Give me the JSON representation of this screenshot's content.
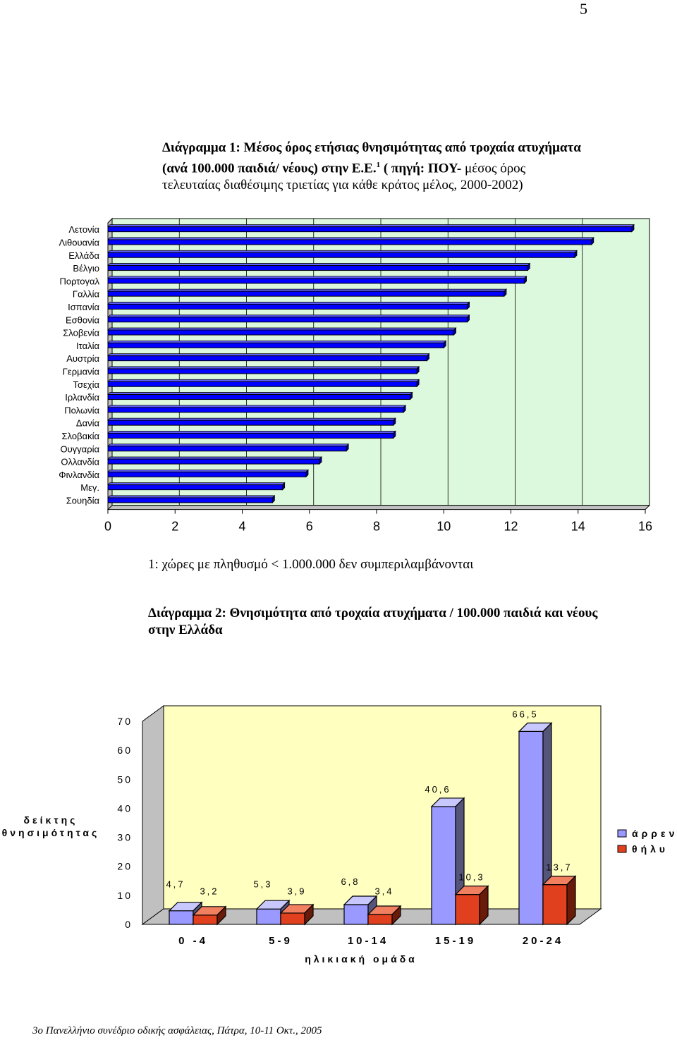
{
  "page_number": "5",
  "chart1_caption": {
    "title": "Διάγραμμα 1: Μέσος όρος ετήσιας θνησιμότητας από τροχαία ατυχήματα (ανά 100.000 παιδιά/ νέους) στην Ε.Ε.",
    "superscript": "1",
    "source": " ( πηγή: ΠΟΥ-",
    "subtitle": "μέσος όρος τελευταίας διαθέσιμης τριετίας για κάθε κράτος μέλος, 2000-2002)"
  },
  "chart1_note": "1: χώρες με πληθυσμό < 1.000.000 δεν συμπεριλαμβάνονται",
  "chart2_caption": {
    "title": "Διάγραμμα 2: Θνησιμότητα από τροχαία ατυχήματα / 100.000 παιδιά και νέους στην Ελλάδα"
  },
  "footer": "3ο Πανελλήνιο συνέδριο οδικής ασφάλειας, Πάτρα, 10-11 Οκτ., 2005",
  "colors": {
    "bar_blue": "#0000ff",
    "bar_blue_side": "#00008b",
    "plot_bg": "#ddf9dd",
    "male_purple": "#9999ff",
    "female_orange": "#e0401e",
    "plot2_bg": "#ffffc0"
  },
  "chart_data": [
    {
      "type": "bar",
      "orientation": "horizontal",
      "categories": [
        "Λετονία",
        "Λιθουανία",
        "Ελλάδα",
        "Βέλγιο",
        "Πορτογαλ",
        "Γαλλία",
        "Ισπανία",
        "Εσθονία",
        "Σλοβενία",
        "Ιταλία",
        "Αυστρία",
        "Γερμανία",
        "Τσεχία",
        "Ιρλανδία",
        "Πολωνία",
        "Δανία",
        "Σλοβακία",
        "Ουγγαρία",
        "Ολλανδία",
        "Φινλανδία",
        "Μεγ.",
        "Σουηδία"
      ],
      "values": [
        15.6,
        14.4,
        13.9,
        12.5,
        12.4,
        11.8,
        10.7,
        10.7,
        10.3,
        10.0,
        9.5,
        9.2,
        9.2,
        9.0,
        8.8,
        8.5,
        8.5,
        7.1,
        6.3,
        5.9,
        5.2,
        4.9
      ],
      "xlim": [
        0,
        16
      ],
      "xticks": [
        "0",
        "2",
        "4",
        "6",
        "8",
        "10",
        "12",
        "14",
        "16"
      ],
      "grid": true,
      "legend": "none"
    },
    {
      "type": "bar",
      "categories": [
        "0 -4",
        "5-9",
        "10-14",
        "15-19",
        "20-24"
      ],
      "series": [
        {
          "name": "άρρεν",
          "values": [
            4.7,
            5.3,
            6.8,
            40.6,
            66.5
          ],
          "labels": [
            "4,7",
            "5,3",
            "6,8",
            "40,6",
            "66,5"
          ]
        },
        {
          "name": "θήλυ",
          "values": [
            3.2,
            3.9,
            3.4,
            10.3,
            13.7
          ],
          "labels": [
            "3,2",
            "3,9",
            "3,4",
            "10,3",
            "13,7"
          ]
        }
      ],
      "xlabel": "ηλικιακή ομάδα",
      "ylabel": [
        "δείκτης",
        "θνησιμότητας"
      ],
      "ylim": [
        0,
        70
      ],
      "yticks": [
        "0",
        "10",
        "20",
        "30",
        "40",
        "50",
        "60",
        "70"
      ],
      "legend": "right"
    }
  ]
}
